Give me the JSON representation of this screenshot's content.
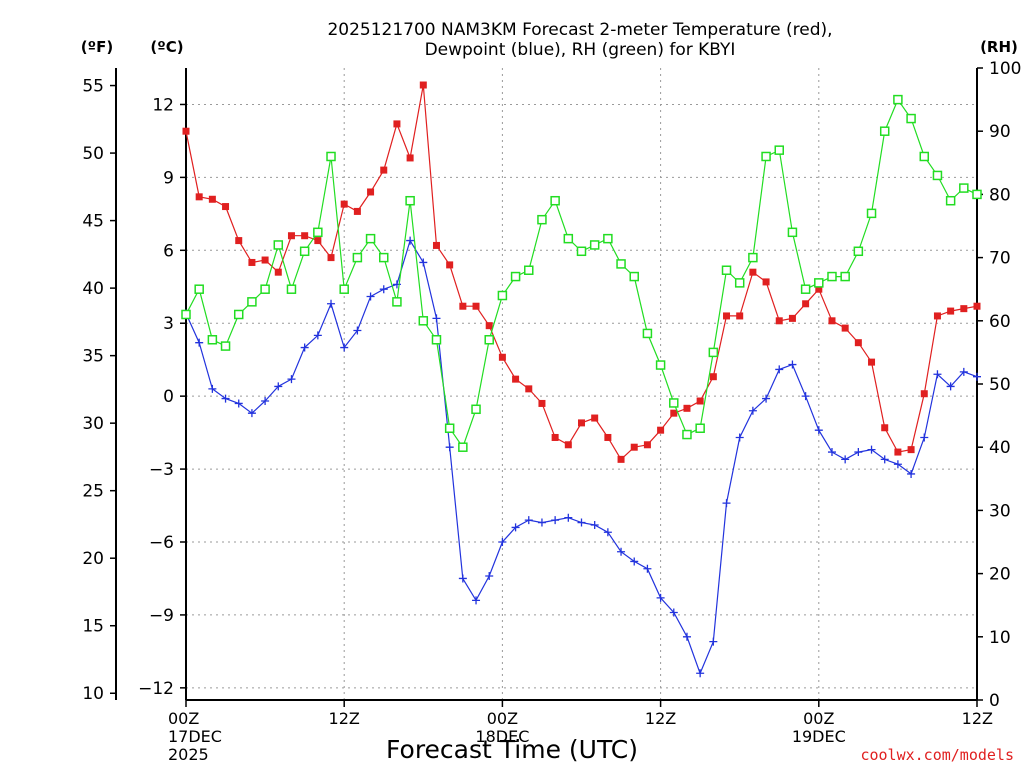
{
  "chart_data": {
    "type": "line",
    "title_line1": "2025121700 NAM3KM Forecast 2-meter Temperature (red),",
    "title_line2": "Dewpoint (blue), RH (green) for KBYI",
    "left_f_unit": "(ºF)",
    "left_c_unit": "(ºC)",
    "right_unit": "(RH)",
    "xlabel": "Forecast Time (UTC)",
    "credit": "coolwx.com/models",
    "x_range_hours": [
      0,
      60
    ],
    "celsius_range": [
      -12.5,
      13.5
    ],
    "fahrenheit_ticks": [
      "10",
      "15",
      "20",
      "25",
      "30",
      "35",
      "40",
      "45",
      "50",
      "55"
    ],
    "celsius_ticks": [
      "−12",
      "−9",
      "−6",
      "−3",
      "0",
      "3",
      "6",
      "9",
      "12"
    ],
    "rh_range": [
      0,
      100
    ],
    "rh_ticks": [
      "0",
      "10",
      "20",
      "30",
      "40",
      "50",
      "60",
      "70",
      "80",
      "90",
      "100"
    ],
    "x_ticks": [
      {
        "hour": 0,
        "lines": [
          "00Z",
          "17DEC",
          "2025"
        ]
      },
      {
        "hour": 12,
        "lines": [
          "12Z"
        ]
      },
      {
        "hour": 24,
        "lines": [
          "00Z",
          "18DEC"
        ]
      },
      {
        "hour": 36,
        "lines": [
          "12Z"
        ]
      },
      {
        "hour": 48,
        "lines": [
          "00Z",
          "19DEC"
        ]
      },
      {
        "hour": 60,
        "lines": [
          "12Z"
        ]
      }
    ],
    "series": [
      {
        "name": "Temperature",
        "unit": "C",
        "color": "#e02020",
        "marker": "filled-square",
        "values": [
          10.9,
          8.2,
          8.1,
          7.8,
          6.4,
          5.5,
          5.6,
          5.1,
          6.6,
          6.6,
          6.4,
          5.7,
          7.9,
          7.6,
          8.4,
          9.3,
          11.2,
          9.8,
          12.8,
          6.2,
          5.4,
          3.7,
          3.7,
          2.9,
          1.6,
          0.7,
          0.3,
          -0.3,
          -1.7,
          -2.0,
          -1.1,
          -0.9,
          -1.7,
          -2.6,
          -2.1,
          -2.0,
          -1.4,
          -0.7,
          -0.5,
          -0.2,
          0.8,
          3.3,
          3.3,
          5.1,
          4.7,
          3.1,
          3.2,
          3.8,
          4.4,
          3.1,
          2.8,
          2.2,
          1.4,
          -1.3,
          -2.3,
          -2.2,
          0.1,
          3.3,
          3.5,
          3.6,
          3.7
        ],
        "point_name": "temperature-point"
      },
      {
        "name": "Dewpoint",
        "unit": "C",
        "color": "#2233dd",
        "marker": "plus",
        "values": [
          3.4,
          2.2,
          0.3,
          -0.1,
          -0.3,
          -0.7,
          -0.2,
          0.4,
          0.7,
          2.0,
          2.5,
          3.8,
          2.0,
          2.7,
          4.1,
          4.4,
          4.6,
          6.4,
          5.5,
          3.2,
          -2.1,
          -7.5,
          -8.4,
          -7.4,
          -6.0,
          -5.4,
          -5.1,
          -5.2,
          -5.1,
          -5.0,
          -5.2,
          -5.3,
          -5.6,
          -6.4,
          -6.8,
          -7.1,
          -8.3,
          -8.9,
          -9.9,
          -11.4,
          -10.1,
          -4.4,
          -1.7,
          -0.6,
          -0.1,
          1.1,
          1.3,
          0.0,
          -1.4,
          -2.3,
          -2.6,
          -2.3,
          -2.2,
          -2.6,
          -2.8,
          -3.2,
          -1.7,
          0.9,
          0.4,
          1.0,
          0.8
        ],
        "point_name": "dewpoint-point"
      },
      {
        "name": "RH",
        "unit": "%",
        "color": "#22dd22",
        "marker": "open-square",
        "values": [
          61,
          65,
          57,
          56,
          61,
          63,
          65,
          72,
          65,
          71,
          74,
          86,
          65,
          70,
          73,
          70,
          63,
          79,
          60,
          57,
          43,
          40,
          46,
          57,
          64,
          67,
          68,
          76,
          79,
          73,
          71,
          72,
          73,
          69,
          67,
          58,
          53,
          47,
          42,
          43,
          55,
          68,
          66,
          70,
          86,
          87,
          74,
          65,
          66,
          67,
          67,
          71,
          77,
          90,
          95,
          92,
          86,
          83,
          79,
          81,
          80
        ],
        "point_name": "rh-point"
      }
    ]
  }
}
